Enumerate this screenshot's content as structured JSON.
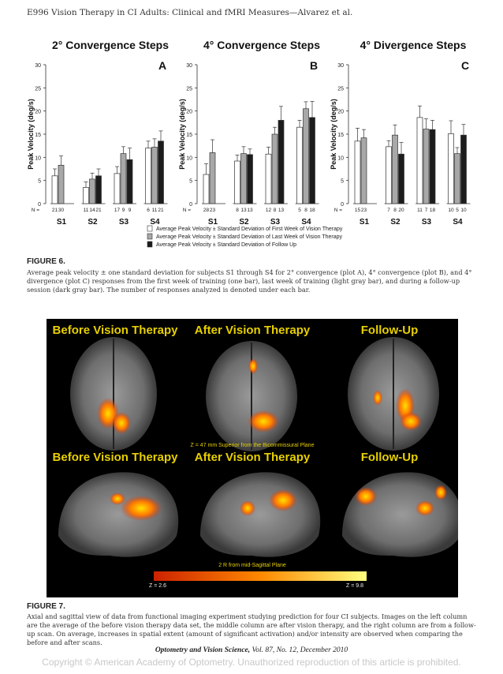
{
  "header": {
    "running_head": "E996   Vision Therapy in CI Adults: Clinical and fMRI Measures—Alvarez et al."
  },
  "figure6": {
    "legend": {
      "first_week": "Average Peak Velocity ± Standard Deviation of First Week of Vision Therapy",
      "last_week": "Average Peak Velocity ± Standard Deviation of Last Week of Vision Therapy",
      "follow_up": "Average Peak Velocity ± Standard Deviation of Follow Up"
    },
    "caption_title": "FIGURE 6.",
    "caption_body": "Average peak velocity ± one standard deviation for subjects S1 through S4 for 2° convergence (plot A), 4° convergence (plot B), and 4° divergence (plot C) responses from the first week of training (one bar), last week of training (light gray bar), and during a follow-up session (dark gray bar). The number of responses analyzed is denoted under each bar."
  },
  "chart_data": [
    {
      "type": "bar",
      "title": "2° Convergence Steps",
      "panel_label": "A",
      "ylabel": "Peak Velocity (deg/s)",
      "ylim": [
        0,
        30
      ],
      "yticks": [
        0,
        5,
        10,
        15,
        20,
        25,
        30
      ],
      "categories": [
        "S1",
        "S2",
        "S3",
        "S4"
      ],
      "n_label": "N =",
      "series": [
        {
          "name": "Average Peak Velocity ± Standard Deviation of First Week of Vision Therapy",
          "color": "#ffffff",
          "values": [
            6,
            3.5,
            6.5,
            12
          ],
          "errors": [
            1.5,
            1.2,
            1.5,
            1.5
          ],
          "n": [
            "21",
            "11",
            "17",
            "6"
          ]
        },
        {
          "name": "Average Peak Velocity ± Standard Deviation of Last Week of Vision Therapy",
          "color": "#a8a8a8",
          "values": [
            8.3,
            5.3,
            10.8,
            12.2
          ],
          "errors": [
            2,
            1.3,
            1.5,
            1.8
          ],
          "n": [
            "30",
            "14",
            "9",
            "11"
          ]
        },
        {
          "name": "Average Peak Velocity ± Standard Deviation of Follow Up",
          "color": "#1c1c1c",
          "values": [
            null,
            6,
            9.5,
            13.5
          ],
          "errors": [
            null,
            1.5,
            2.5,
            2.2
          ],
          "n": [
            "",
            "21",
            "9",
            "21"
          ]
        }
      ]
    },
    {
      "type": "bar",
      "title": "4° Convergence Steps",
      "panel_label": "B",
      "ylabel": "Peak Velocity (deg/s)",
      "ylim": [
        0,
        30
      ],
      "yticks": [
        0,
        5,
        10,
        15,
        20,
        25,
        30
      ],
      "categories": [
        "S1",
        "S2",
        "S3",
        "S4"
      ],
      "n_label": "N =",
      "series": [
        {
          "name": "Average Peak Velocity ± Standard Deviation of First Week of Vision Therapy",
          "color": "#ffffff",
          "values": [
            6.3,
            9.2,
            10.7,
            16.5
          ],
          "errors": [
            2.3,
            1.3,
            1.5,
            1.5
          ],
          "n": [
            "28",
            "8",
            "12",
            "5"
          ]
        },
        {
          "name": "Average Peak Velocity ± Standard Deviation of Last Week of Vision Therapy",
          "color": "#a8a8a8",
          "values": [
            11,
            10.8,
            15,
            20.5
          ],
          "errors": [
            2.8,
            1.5,
            1.5,
            1.5
          ],
          "n": [
            "23",
            "13",
            "8",
            "8"
          ]
        },
        {
          "name": "Average Peak Velocity ± Standard Deviation of Follow Up",
          "color": "#1c1c1c",
          "values": [
            null,
            10.6,
            18,
            18.6
          ],
          "errors": [
            null,
            1.2,
            3,
            3.5
          ],
          "n": [
            "",
            "13",
            "13",
            "18"
          ]
        }
      ]
    },
    {
      "type": "bar",
      "title": "4° Divergence Steps",
      "panel_label": "C",
      "ylabel": "Peak Velocity (deg/s)",
      "ylim": [
        0,
        30
      ],
      "yticks": [
        0,
        5,
        10,
        15,
        20,
        25,
        30
      ],
      "categories": [
        "S1",
        "S2",
        "S3",
        "S4"
      ],
      "n_label": "N =",
      "series": [
        {
          "name": "Average Peak Velocity ± Standard Deviation of First Week of Vision Therapy",
          "color": "#ffffff",
          "values": [
            13.5,
            12.3,
            18.6,
            15.1
          ],
          "errors": [
            2.8,
            1.3,
            2.5,
            2.8
          ],
          "n": [
            "15",
            "7",
            "11",
            "10"
          ]
        },
        {
          "name": "Average Peak Velocity ± Standard Deviation of Last Week of Vision Therapy",
          "color": "#a8a8a8",
          "values": [
            14.2,
            14.8,
            16.1,
            10.8
          ],
          "errors": [
            1.8,
            2.2,
            2.2,
            1.3
          ],
          "n": [
            "23",
            "8",
            "7",
            "5"
          ]
        },
        {
          "name": "Average Peak Velocity ± Standard Deviation of Follow Up",
          "color": "#1c1c1c",
          "values": [
            null,
            10.7,
            16.0,
            14.8
          ],
          "errors": [
            null,
            2.5,
            2,
            2.3
          ],
          "n": [
            "",
            "20",
            "18",
            "10"
          ]
        }
      ]
    }
  ],
  "figure7": {
    "panel_titles": {
      "axial_before": "Before Vision Therapy",
      "axial_after": "After Vision Therapy",
      "axial_follow": "Follow-Up",
      "sag_before": "Before Vision Therapy",
      "sag_after": "After Vision Therapy",
      "sag_follow": "Follow-Up"
    },
    "axial_note": "Z = 47 mm Superior  from the Bicommissural Plane",
    "sagittal_note": "2 R from mid-Sagittal Plane",
    "colorbar_min": "Z = 2.6",
    "colorbar_max": "Z = 9.8",
    "colors": {
      "title": "#e8d000",
      "colorbar_start": "#cc2200",
      "colorbar_end": "#ffff80"
    },
    "caption_title": "FIGURE 7.",
    "caption_body": "Axial and sagittal view of data from functional imaging experiment studying prediction for four CI subjects. Images on the left column are the average of the before vision therapy data set, the middle column are after vision therapy, and the right column are from a follow-up scan. On average, increases in spatial extent (amount of significant activation) and/or intensity are observed when comparing the before and after scans."
  },
  "footer": {
    "journal": "Optometry and Vision Science,",
    "issue": " Vol. 87, No. 12, December 2010",
    "copyright": "Copyright © American Academy of Optometry. Unauthorized reproduction of this article is prohibited."
  }
}
